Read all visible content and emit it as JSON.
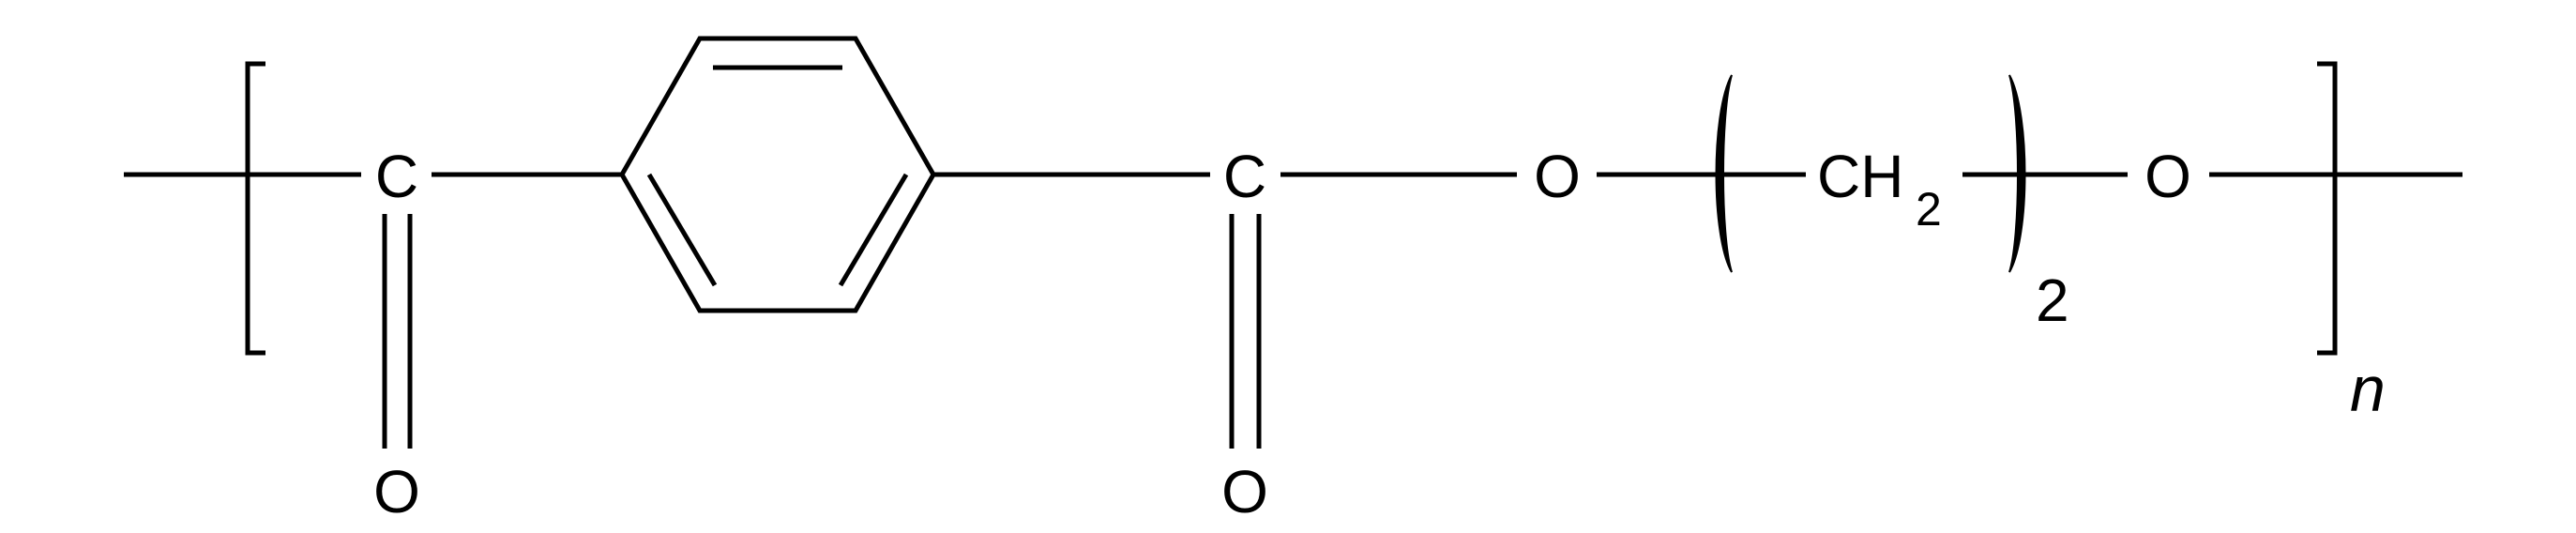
{
  "structure": {
    "carbonyl_carbon_1": "C",
    "carbonyl_oxygen_1": "O",
    "carbonyl_carbon_2": "C",
    "carbonyl_oxygen_2": "O",
    "ester_oxygen_1": "O",
    "methylene_group": "CH",
    "methylene_hydrogen_count": "2",
    "methylene_repeat": "2",
    "ester_oxygen_2": "O",
    "polymer_subscript": "n"
  }
}
